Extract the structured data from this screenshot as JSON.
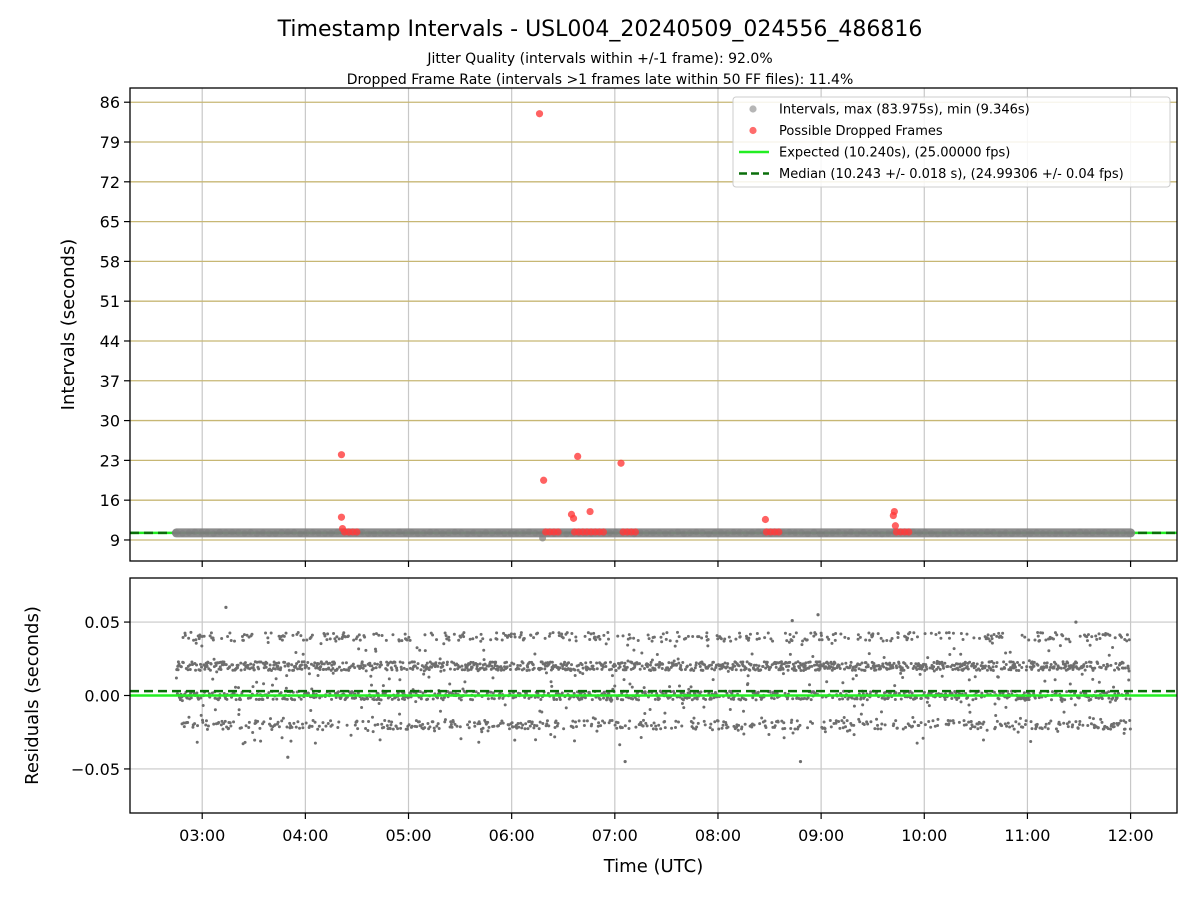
{
  "chart_data": {
    "title": "Timestamp Intervals - USL004_20240509_024556_486816",
    "subtitle_1": "Jitter Quality (intervals within +/-1 frame): 92.0%",
    "subtitle_2": "Dropped Frame Rate (intervals >1 frames late within 50 FF files): 11.4%",
    "x_axis": {
      "label": "Time (UTC)",
      "range_hours": [
        2.3,
        12.45
      ],
      "ticks": [
        {
          "value": 3,
          "label": "03:00"
        },
        {
          "value": 4,
          "label": "04:00"
        },
        {
          "value": 5,
          "label": "05:00"
        },
        {
          "value": 6,
          "label": "06:00"
        },
        {
          "value": 7,
          "label": "07:00"
        },
        {
          "value": 8,
          "label": "08:00"
        },
        {
          "value": 9,
          "label": "09:00"
        },
        {
          "value": 10,
          "label": "10:00"
        },
        {
          "value": 11,
          "label": "11:00"
        },
        {
          "value": 12,
          "label": "12:00"
        }
      ]
    },
    "top_panel": {
      "type": "scatter",
      "ylabel": "Intervals (seconds)",
      "ylim": [
        5.3,
        88.5
      ],
      "y_ticks": [
        {
          "value": 9,
          "label": "9"
        },
        {
          "value": 16,
          "label": "16"
        },
        {
          "value": 23,
          "label": "23"
        },
        {
          "value": 30,
          "label": "30"
        },
        {
          "value": 37,
          "label": "37"
        },
        {
          "value": 44,
          "label": "44"
        },
        {
          "value": 51,
          "label": "51"
        },
        {
          "value": 58,
          "label": "58"
        },
        {
          "value": 65,
          "label": "65"
        },
        {
          "value": 72,
          "label": "72"
        },
        {
          "value": 79,
          "label": "79"
        },
        {
          "value": 86,
          "label": "86"
        }
      ],
      "legend": [
        {
          "label": "Intervals, max (83.975s), min (9.346s)",
          "kind": "marker",
          "color": "#9e9e9e"
        },
        {
          "label": "Possible Dropped Frames",
          "kind": "marker",
          "color": "#ff3b3b"
        },
        {
          "label": "Expected (10.240s), (25.00000 fps)",
          "kind": "line",
          "color": "#22ee22"
        },
        {
          "label": "Median (10.243 +/- 0.018 s), (24.99306 +/- 0.04 fps)",
          "kind": "dashed",
          "color": "#0a6e0a"
        }
      ],
      "legend_position": "upper-right",
      "expected_value": 10.24,
      "median_value": 10.243,
      "interval_band": {
        "x_start": 2.75,
        "x_end": 12.0,
        "value": 10.24
      },
      "min_point": {
        "x": 6.3,
        "y": 9.346
      },
      "dropped_frames": [
        {
          "x": 4.35,
          "y": 24.0
        },
        {
          "x": 4.35,
          "y": 13.0
        },
        {
          "x": 4.36,
          "y": 11.0
        },
        {
          "x": 4.38,
          "y": 10.4
        },
        {
          "x": 4.42,
          "y": 10.4
        },
        {
          "x": 4.46,
          "y": 10.4
        },
        {
          "x": 4.5,
          "y": 10.4
        },
        {
          "x": 6.27,
          "y": 83.975
        },
        {
          "x": 6.31,
          "y": 19.5
        },
        {
          "x": 6.33,
          "y": 10.4
        },
        {
          "x": 6.37,
          "y": 10.4
        },
        {
          "x": 6.41,
          "y": 10.4
        },
        {
          "x": 6.45,
          "y": 10.4
        },
        {
          "x": 6.58,
          "y": 13.5
        },
        {
          "x": 6.6,
          "y": 12.8
        },
        {
          "x": 6.64,
          "y": 23.7
        },
        {
          "x": 6.61,
          "y": 10.4
        },
        {
          "x": 6.65,
          "y": 10.4
        },
        {
          "x": 6.69,
          "y": 10.4
        },
        {
          "x": 6.73,
          "y": 10.4
        },
        {
          "x": 6.76,
          "y": 14.0
        },
        {
          "x": 6.77,
          "y": 10.4
        },
        {
          "x": 6.81,
          "y": 10.4
        },
        {
          "x": 6.85,
          "y": 10.4
        },
        {
          "x": 6.89,
          "y": 10.4
        },
        {
          "x": 7.06,
          "y": 22.5
        },
        {
          "x": 7.08,
          "y": 10.4
        },
        {
          "x": 7.12,
          "y": 10.4
        },
        {
          "x": 7.16,
          "y": 10.4
        },
        {
          "x": 7.2,
          "y": 10.4
        },
        {
          "x": 8.46,
          "y": 12.6
        },
        {
          "x": 8.47,
          "y": 10.4
        },
        {
          "x": 8.51,
          "y": 10.4
        },
        {
          "x": 8.55,
          "y": 10.4
        },
        {
          "x": 8.59,
          "y": 10.4
        },
        {
          "x": 9.71,
          "y": 14.0
        },
        {
          "x": 9.7,
          "y": 13.3
        },
        {
          "x": 9.72,
          "y": 11.5
        },
        {
          "x": 9.73,
          "y": 10.4
        },
        {
          "x": 9.77,
          "y": 10.4
        },
        {
          "x": 9.81,
          "y": 10.4
        },
        {
          "x": 9.85,
          "y": 10.4
        }
      ]
    },
    "bottom_panel": {
      "type": "scatter",
      "ylabel": "Residuals (seconds)",
      "ylim": [
        -0.08,
        0.08
      ],
      "y_ticks": [
        {
          "value": 0.05,
          "label": "0.05"
        },
        {
          "value": 0.0,
          "label": "0.00"
        },
        {
          "value": -0.05,
          "label": "−0.05"
        }
      ],
      "expected_value": 0.0,
      "median_value": 0.003,
      "residual_levels": [
        0.04,
        0.02,
        0.0,
        -0.02
      ],
      "x_start": 2.75,
      "x_end": 12.0,
      "outliers": [
        {
          "x": 3.23,
          "y": 0.06
        },
        {
          "x": 3.83,
          "y": -0.042
        },
        {
          "x": 7.1,
          "y": -0.045
        },
        {
          "x": 8.8,
          "y": -0.045
        },
        {
          "x": 8.72,
          "y": 0.051
        },
        {
          "x": 8.97,
          "y": 0.055
        },
        {
          "x": 11.47,
          "y": 0.05
        }
      ]
    },
    "colors": {
      "grid": "#c8c8c8",
      "y_grid_top": "#c7b774",
      "axes": "#000000",
      "interval_points": "#808080",
      "dropped": "#ff3b3b",
      "expected": "#22ee22",
      "median": "#0a6e0a",
      "residual_points": "#6e6e6e"
    }
  }
}
